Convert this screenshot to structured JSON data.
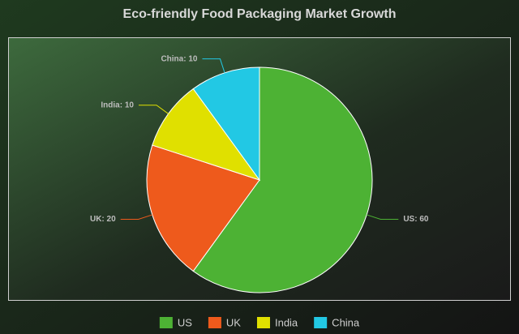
{
  "chart_data": {
    "type": "pie",
    "title": "Eco-friendly Food Packaging Market Growth",
    "categories": [
      "US",
      "UK",
      "India",
      "China"
    ],
    "values": [
      60,
      20,
      10,
      10
    ],
    "value_labels": [
      "US: 60",
      "UK: 20",
      "India: 10",
      "China: 10"
    ],
    "colors": [
      "#4db234",
      "#ee5a1c",
      "#e0e000",
      "#22c8e4"
    ],
    "legend": "bottom"
  }
}
